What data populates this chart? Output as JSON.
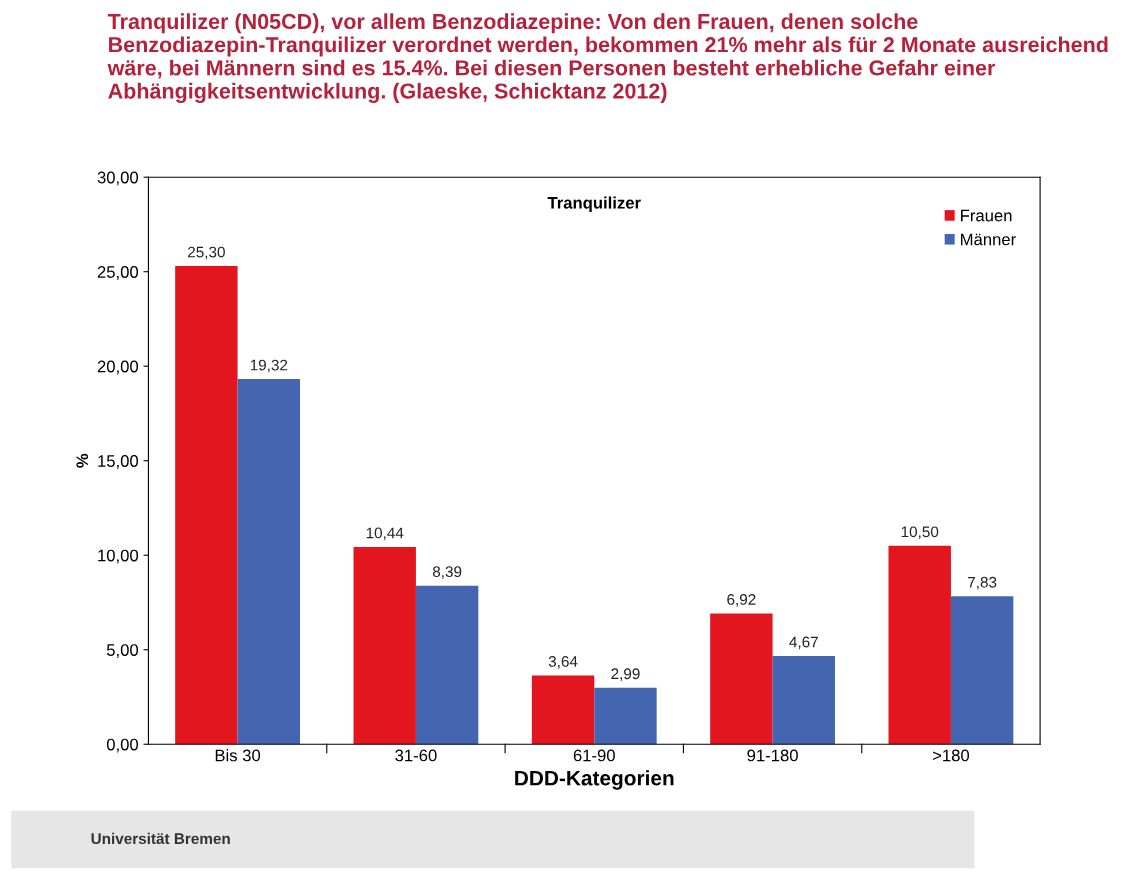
{
  "chart_data": {
    "type": "bar",
    "title": "Tranquilizer (N05CD), vor allem Benzodiazepine: Von den Frauen, denen solche Benzodiazepin-Tranquilizer verordnet werden, bekommen 21% mehr als für 2 Monate ausreichend wäre, bei Männern sind es 15.4%. Bei diesen Personen besteht erhebliche Gefahr einer Abhängigkeitsentwicklung. (Glaeske, Schicktanz 2012)",
    "subtitle": "Tranquilizer",
    "xlabel": "DDD-Kategorien",
    "ylabel": "%",
    "categories": [
      "Bis 30",
      "31-60",
      "61-90",
      "91-180",
      ">180"
    ],
    "series": [
      {
        "name": "Frauen",
        "color": "#e3161f",
        "values": [
          25.3,
          10.44,
          3.64,
          6.92,
          10.5
        ],
        "value_labels": [
          "25,30",
          "10,44",
          "3,64",
          "6,92",
          "10,50"
        ]
      },
      {
        "name": "Männer",
        "color": "#4466b0",
        "values": [
          19.32,
          8.39,
          2.99,
          4.67,
          7.83
        ],
        "value_labels": [
          "19,32",
          "8,39",
          "2,99",
          "4,67",
          "7,83"
        ]
      }
    ],
    "ylim": [
      0,
      30
    ],
    "yticks": [
      {
        "value": 0,
        "label": "0,00"
      },
      {
        "value": 5,
        "label": "5,00"
      },
      {
        "value": 10,
        "label": "10,00"
      },
      {
        "value": 15,
        "label": "15,00"
      },
      {
        "value": 20,
        "label": "20,00"
      },
      {
        "value": 25,
        "label": "25,00"
      },
      {
        "value": 30,
        "label": "30,00"
      }
    ],
    "grid": false,
    "legend": "top right",
    "annotations": [
      "Universität Bremen"
    ]
  }
}
